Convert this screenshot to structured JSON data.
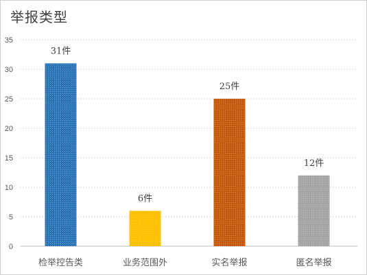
{
  "chart_data": {
    "type": "bar",
    "title": "举报类型",
    "categories": [
      "检举控告类",
      "业务范围外",
      "实名举报",
      "匿名举报"
    ],
    "values": [
      31,
      6,
      25,
      12
    ],
    "data_labels": [
      "31件",
      "6件",
      "25件",
      "12件"
    ],
    "colors": [
      "#2e75b6",
      "#ffc000",
      "#c55a11",
      "#a5a5a5"
    ],
    "ylim": [
      0,
      35
    ],
    "yticks": [
      0,
      5,
      10,
      15,
      20,
      25,
      30,
      35
    ],
    "grid": true,
    "xlabel": "",
    "ylabel": ""
  }
}
